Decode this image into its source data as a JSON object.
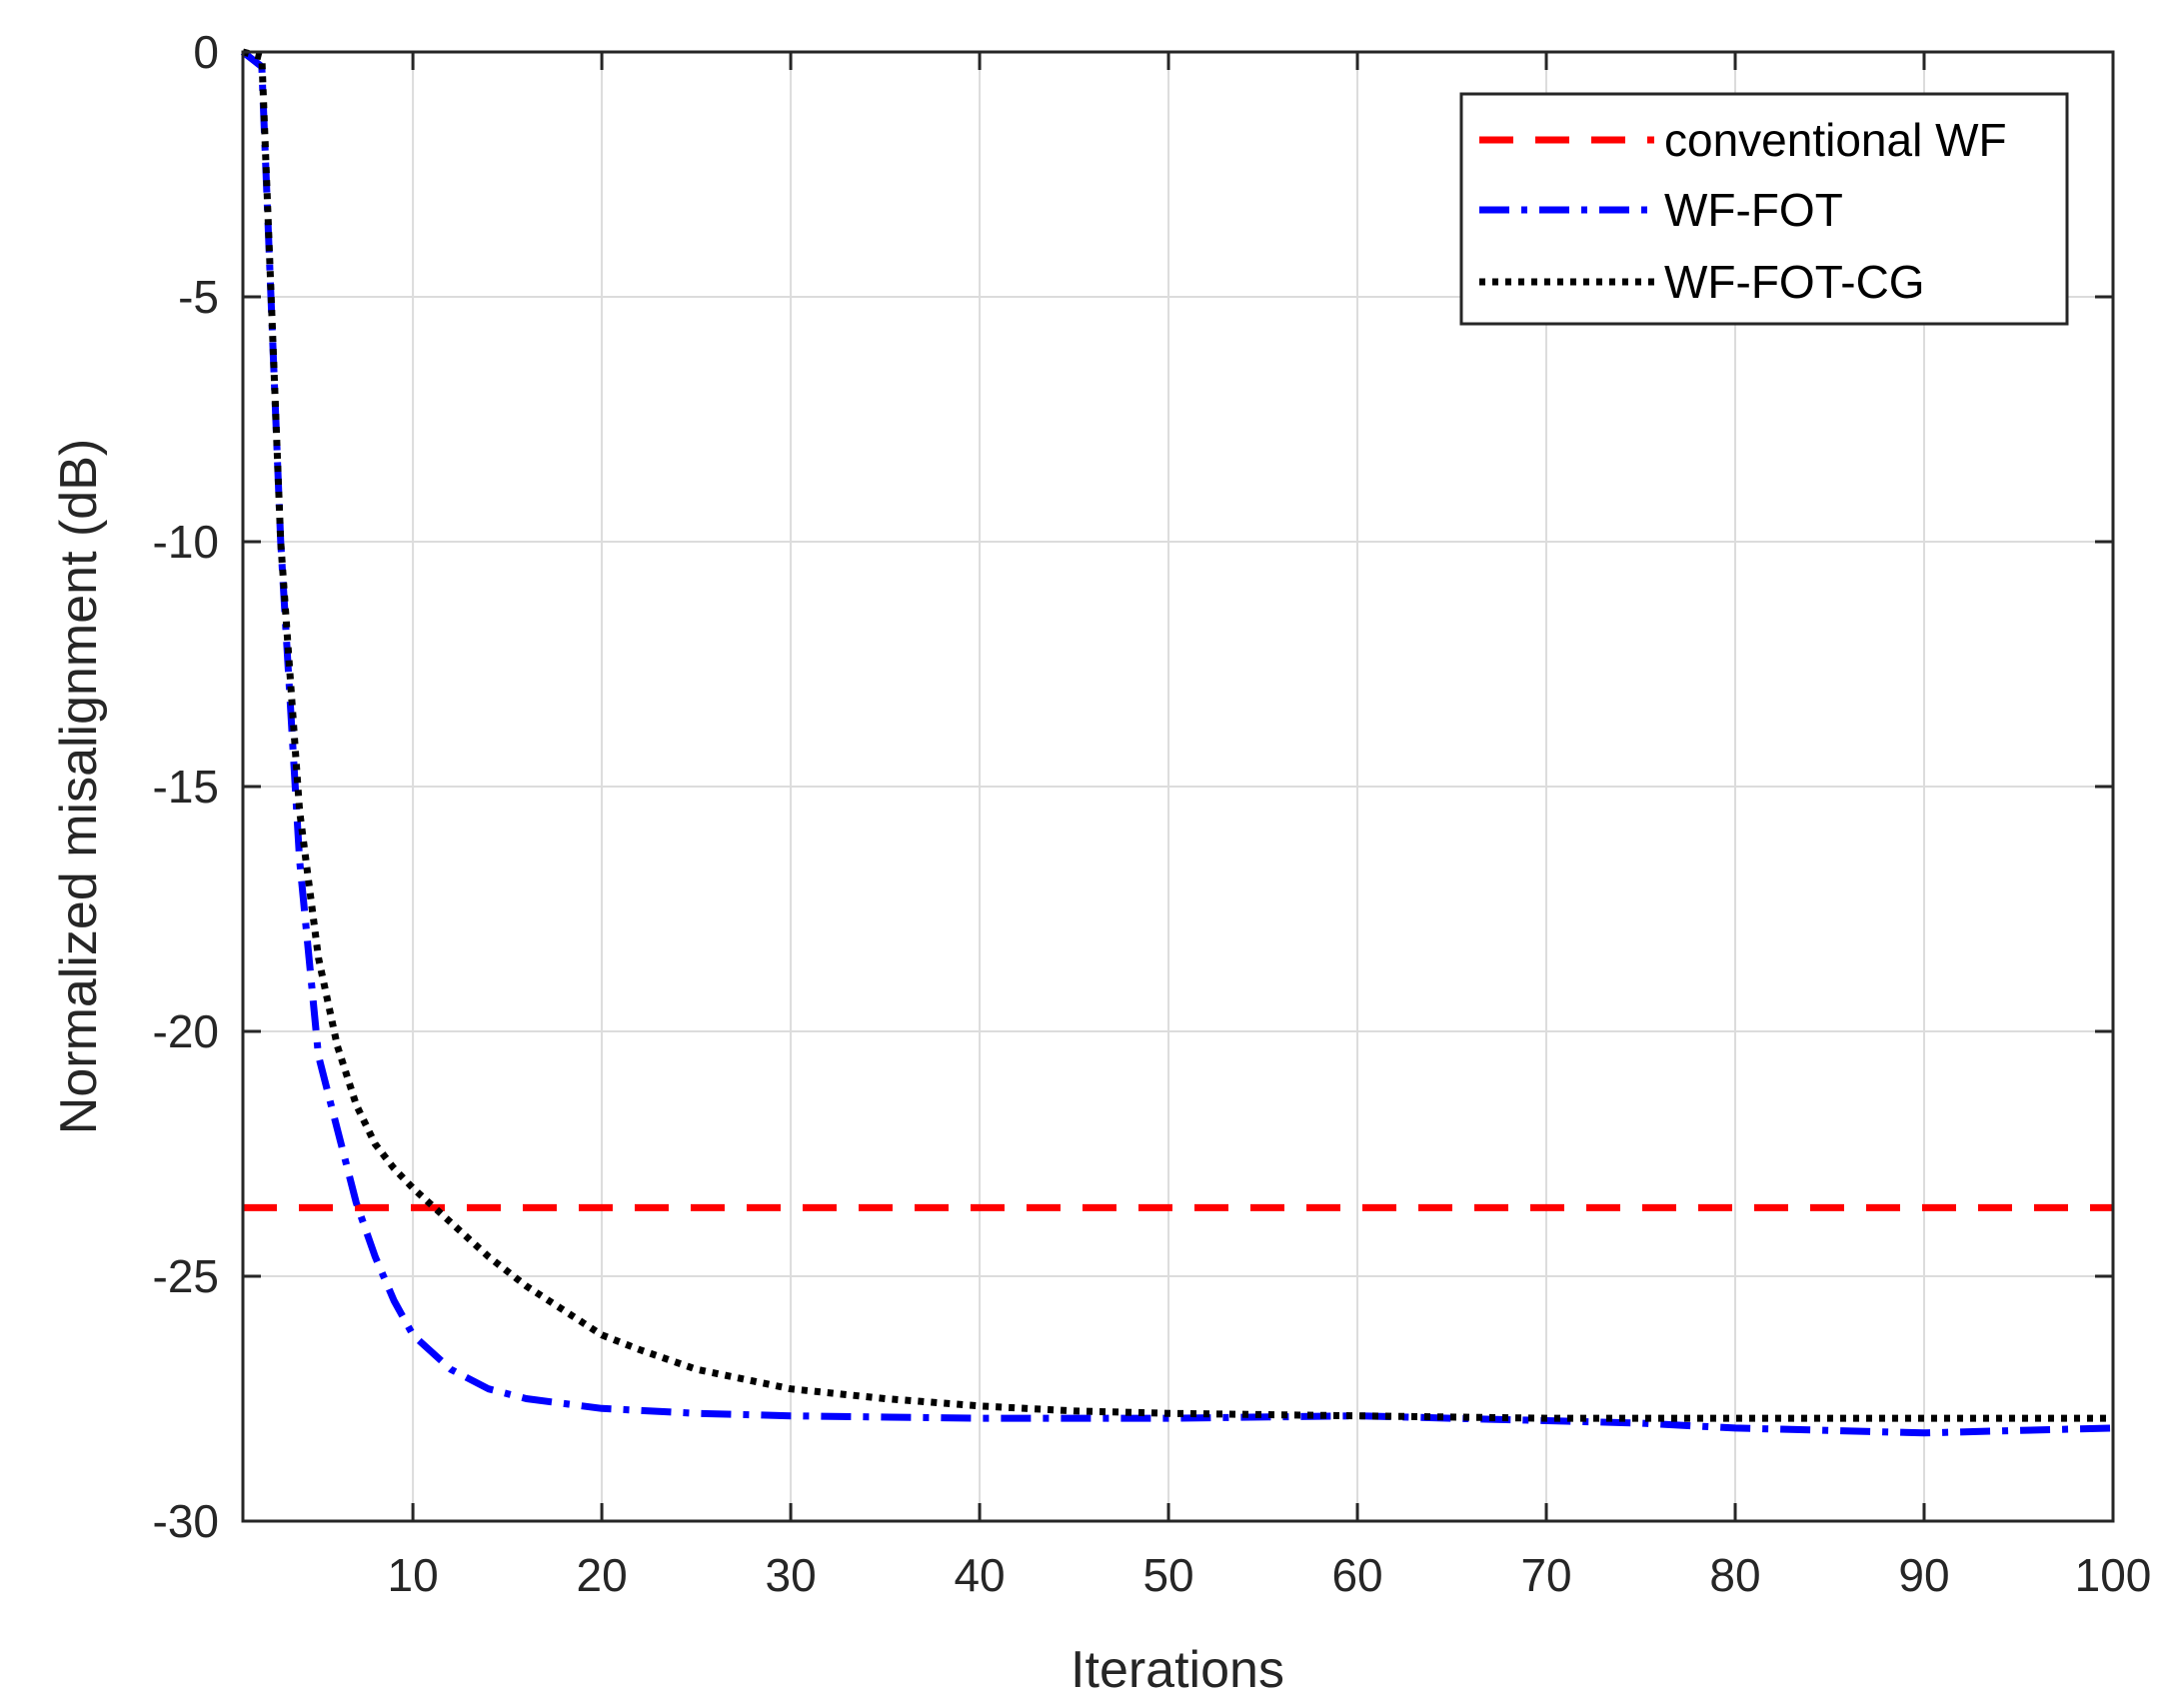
{
  "chart_data": {
    "type": "line",
    "title": "",
    "xlabel": "Iterations",
    "ylabel": "Normalized misalignment (dB)",
    "xlim": [
      1,
      100
    ],
    "ylim": [
      -30,
      0
    ],
    "xticks": [
      10,
      20,
      30,
      40,
      50,
      60,
      70,
      80,
      90,
      100
    ],
    "yticks": [
      0,
      -5,
      -10,
      -15,
      -20,
      -25,
      -30
    ],
    "grid": true,
    "legend_position": "top-right",
    "series": [
      {
        "name": "conventional WF",
        "color": "#ff0000",
        "style": "dashed",
        "x": [
          1,
          100
        ],
        "y": [
          -23.6,
          -23.6
        ]
      },
      {
        "name": "WF-FOT",
        "color": "#0000ff",
        "style": "dashdot",
        "x": [
          1,
          2,
          3,
          4,
          5,
          6,
          7,
          8,
          9,
          10,
          12,
          14,
          16,
          18,
          20,
          25,
          30,
          40,
          50,
          60,
          70,
          75,
          80,
          85,
          90,
          95,
          100
        ],
        "y": [
          0,
          -0.3,
          -10.0,
          -16.5,
          -20.5,
          -22.0,
          -23.5,
          -24.6,
          -25.5,
          -26.2,
          -26.9,
          -27.3,
          -27.5,
          -27.6,
          -27.7,
          -27.8,
          -27.85,
          -27.9,
          -27.9,
          -27.85,
          -27.95,
          -28.0,
          -28.1,
          -28.15,
          -28.2,
          -28.15,
          -28.1
        ]
      },
      {
        "name": "WF-FOT-CG",
        "color": "#000000",
        "style": "dotted",
        "x": [
          1,
          2,
          3,
          4,
          5,
          6,
          7,
          8,
          9,
          10,
          12,
          14,
          16,
          18,
          20,
          22,
          25,
          30,
          35,
          40,
          45,
          50,
          60,
          70,
          80,
          90,
          100
        ],
        "y": [
          0,
          -0.1,
          -10.0,
          -15.5,
          -18.5,
          -20.3,
          -21.5,
          -22.3,
          -22.8,
          -23.2,
          -23.9,
          -24.6,
          -25.2,
          -25.7,
          -26.2,
          -26.5,
          -26.9,
          -27.3,
          -27.5,
          -27.65,
          -27.75,
          -27.8,
          -27.85,
          -27.9,
          -27.9,
          -27.9,
          -27.9
        ]
      }
    ]
  }
}
